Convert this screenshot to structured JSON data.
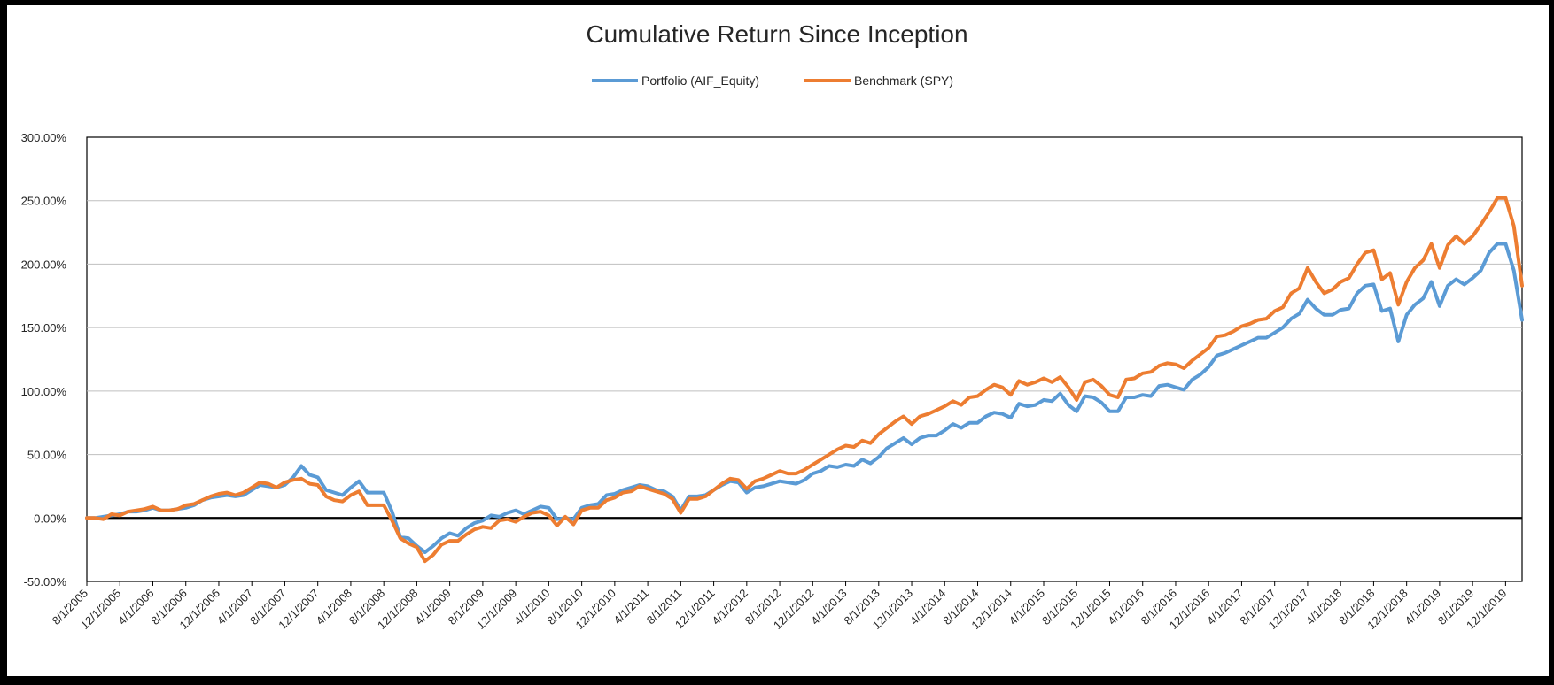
{
  "chart_data": {
    "type": "line",
    "title": "Cumulative Return Since Inception",
    "xlabel": "",
    "ylabel": "",
    "ylim": [
      -0.5,
      3.0
    ],
    "y_ticks": [
      -0.5,
      0,
      0.5,
      1.0,
      1.5,
      2.0,
      2.5,
      3.0
    ],
    "y_tick_labels": [
      "-50.00%",
      "0.00%",
      "50.00%",
      "100.00%",
      "150.00%",
      "200.00%",
      "250.00%",
      "300.00%"
    ],
    "x_tick_labels": [
      "8/1/2005",
      "12/1/2005",
      "4/1/2006",
      "8/1/2006",
      "12/1/2006",
      "4/1/2007",
      "8/1/2007",
      "12/1/2007",
      "4/1/2008",
      "8/1/2008",
      "12/1/2008",
      "4/1/2009",
      "8/1/2009",
      "12/1/2009",
      "4/1/2010",
      "8/1/2010",
      "12/1/2010",
      "4/1/2011",
      "8/1/2011",
      "12/1/2011",
      "4/1/2012",
      "8/1/2012",
      "12/1/2012",
      "4/1/2013",
      "8/1/2013",
      "12/1/2013",
      "4/1/2014",
      "8/1/2014",
      "12/1/2014",
      "4/1/2015",
      "8/1/2015",
      "12/1/2015",
      "4/1/2016",
      "8/1/2016",
      "12/1/2016",
      "4/1/2017",
      "8/1/2017",
      "12/1/2017",
      "4/1/2018",
      "8/1/2018",
      "12/1/2018",
      "4/1/2019",
      "8/1/2019",
      "12/1/2019"
    ],
    "grid": true,
    "legend_position": "top-center",
    "series": [
      {
        "name": "Portfolio (AIF_Equity)",
        "color": "#5B9BD5",
        "values": [
          0,
          0,
          0.01,
          0.02,
          0.03,
          0.05,
          0.05,
          0.06,
          0.08,
          0.06,
          0.06,
          0.07,
          0.08,
          0.1,
          0.14,
          0.16,
          0.17,
          0.18,
          0.17,
          0.18,
          0.22,
          0.26,
          0.25,
          0.24,
          0.26,
          0.32,
          0.41,
          0.34,
          0.32,
          0.22,
          0.2,
          0.18,
          0.24,
          0.29,
          0.2,
          0.2,
          0.2,
          0.05,
          -0.15,
          -0.16,
          -0.22,
          -0.27,
          -0.22,
          -0.16,
          -0.12,
          -0.14,
          -0.08,
          -0.04,
          -0.02,
          0.02,
          0.01,
          0.04,
          0.06,
          0.03,
          0.06,
          0.09,
          0.08,
          -0.01,
          0.0,
          -0.01,
          0.08,
          0.1,
          0.11,
          0.18,
          0.19,
          0.22,
          0.24,
          0.26,
          0.25,
          0.22,
          0.21,
          0.17,
          0.06,
          0.17,
          0.17,
          0.18,
          0.22,
          0.26,
          0.29,
          0.28,
          0.2,
          0.24,
          0.25,
          0.27,
          0.29,
          0.28,
          0.27,
          0.3,
          0.35,
          0.37,
          0.41,
          0.4,
          0.42,
          0.41,
          0.46,
          0.43,
          0.48,
          0.55,
          0.59,
          0.63,
          0.58,
          0.63,
          0.65,
          0.65,
          0.69,
          0.74,
          0.71,
          0.75,
          0.75,
          0.8,
          0.83,
          0.82,
          0.79,
          0.9,
          0.88,
          0.89,
          0.93,
          0.92,
          0.98,
          0.89,
          0.84,
          0.96,
          0.95,
          0.91,
          0.84,
          0.84,
          0.95,
          0.95,
          0.97,
          0.96,
          1.04,
          1.05,
          1.03,
          1.01,
          1.09,
          1.13,
          1.19,
          1.28,
          1.3,
          1.33,
          1.36,
          1.39,
          1.42,
          1.42,
          1.46,
          1.5,
          1.57,
          1.61,
          1.72,
          1.65,
          1.6,
          1.6,
          1.64,
          1.65,
          1.77,
          1.83,
          1.84,
          1.63,
          1.65,
          1.39,
          1.6,
          1.68,
          1.73,
          1.86,
          1.67,
          1.83,
          1.88,
          1.84,
          1.89,
          1.95,
          2.09,
          2.16,
          2.16,
          1.95,
          1.56
        ]
      },
      {
        "name": "Benchmark (SPY)",
        "color": "#ED7D31",
        "values": [
          0,
          0,
          -0.01,
          0.03,
          0.02,
          0.05,
          0.06,
          0.07,
          0.09,
          0.06,
          0.06,
          0.07,
          0.1,
          0.11,
          0.14,
          0.17,
          0.19,
          0.2,
          0.18,
          0.2,
          0.24,
          0.28,
          0.27,
          0.24,
          0.28,
          0.3,
          0.31,
          0.27,
          0.26,
          0.17,
          0.14,
          0.13,
          0.18,
          0.21,
          0.1,
          0.1,
          0.1,
          -0.02,
          -0.16,
          -0.2,
          -0.23,
          -0.34,
          -0.29,
          -0.21,
          -0.18,
          -0.18,
          -0.13,
          -0.09,
          -0.07,
          -0.08,
          -0.02,
          -0.01,
          -0.03,
          0.01,
          0.04,
          0.05,
          0.02,
          -0.06,
          0.01,
          -0.05,
          0.06,
          0.08,
          0.08,
          0.14,
          0.16,
          0.2,
          0.21,
          0.25,
          0.23,
          0.21,
          0.19,
          0.15,
          0.04,
          0.15,
          0.15,
          0.17,
          0.22,
          0.27,
          0.31,
          0.3,
          0.23,
          0.29,
          0.31,
          0.34,
          0.37,
          0.35,
          0.35,
          0.38,
          0.42,
          0.46,
          0.5,
          0.54,
          0.57,
          0.56,
          0.61,
          0.59,
          0.66,
          0.71,
          0.76,
          0.8,
          0.74,
          0.8,
          0.82,
          0.85,
          0.88,
          0.92,
          0.89,
          0.95,
          0.96,
          1.01,
          1.05,
          1.03,
          0.97,
          1.08,
          1.05,
          1.07,
          1.1,
          1.07,
          1.11,
          1.03,
          0.93,
          1.07,
          1.09,
          1.04,
          0.97,
          0.95,
          1.09,
          1.1,
          1.14,
          1.15,
          1.2,
          1.22,
          1.21,
          1.18,
          1.24,
          1.29,
          1.34,
          1.43,
          1.44,
          1.47,
          1.51,
          1.53,
          1.56,
          1.57,
          1.63,
          1.66,
          1.77,
          1.81,
          1.97,
          1.86,
          1.77,
          1.8,
          1.86,
          1.89,
          2.0,
          2.09,
          2.11,
          1.88,
          1.93,
          1.68,
          1.86,
          1.97,
          2.03,
          2.16,
          1.97,
          2.15,
          2.22,
          2.16,
          2.22,
          2.31,
          2.41,
          2.52,
          2.52,
          2.3,
          1.83
        ]
      }
    ]
  }
}
